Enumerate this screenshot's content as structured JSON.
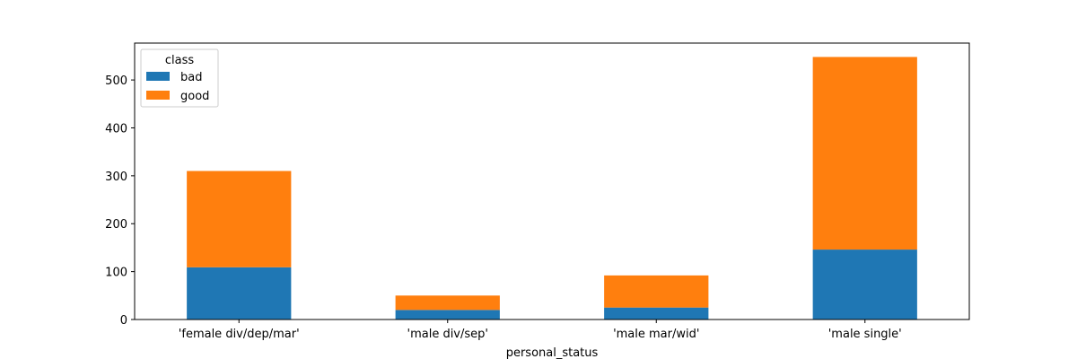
{
  "chart_data": {
    "type": "bar",
    "stacked": true,
    "categories": [
      "'female div/dep/mar'",
      "'male div/sep'",
      "'male mar/wid'",
      "'male single'"
    ],
    "series": [
      {
        "name": "bad",
        "values": [
          109,
          20,
          25,
          146
        ],
        "color": "#1f77b4"
      },
      {
        "name": "good",
        "values": [
          201,
          30,
          67,
          402
        ],
        "color": "#ff7f0e"
      }
    ],
    "xlabel": "personal_status",
    "ylabel": "",
    "ylim": [
      0,
      577
    ],
    "yticks": [
      0,
      100,
      200,
      300,
      400,
      500
    ],
    "grid": false,
    "legend": {
      "title": "class",
      "placement": "top-left"
    }
  }
}
